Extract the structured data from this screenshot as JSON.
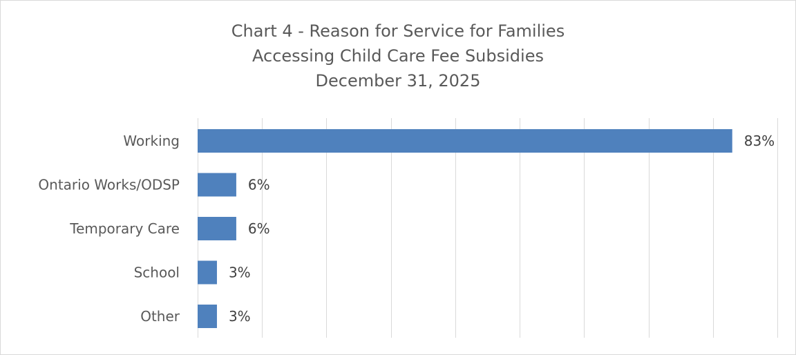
{
  "chart_data": {
    "type": "bar",
    "orientation": "horizontal",
    "title_lines": [
      "Chart 4 - Reason for Service for Families",
      "Accessing Child Care Fee Subsidies",
      "December 31, 2025"
    ],
    "categories": [
      "Working",
      "Ontario Works/ODSP",
      "Temporary Care",
      "School",
      "Other"
    ],
    "values": [
      83,
      6,
      6,
      3,
      3
    ],
    "data_labels": [
      "83%",
      "6%",
      "6%",
      "3%",
      "3%"
    ],
    "value_unit": "%",
    "xlim": [
      0,
      90
    ],
    "x_gridline_step": 10,
    "grid": true,
    "legend": "none",
    "bar_color": "#4f81bd"
  }
}
